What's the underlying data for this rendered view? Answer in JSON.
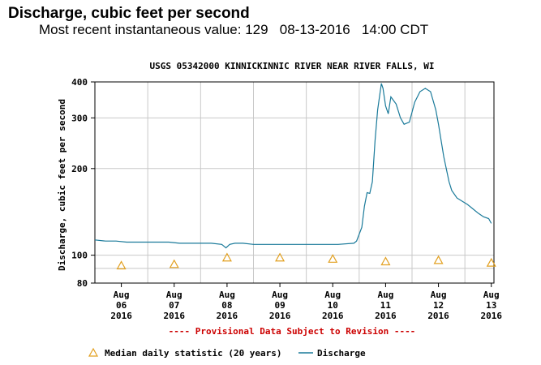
{
  "header": {
    "title": "Discharge, cubic feet per second",
    "recent_label": "Most recent instantaneous value:",
    "recent_value": "129",
    "recent_date": "08-13-2016",
    "recent_time": "14:00 CDT"
  },
  "chart_data": {
    "type": "line",
    "title": "USGS 05342000 KINNICKINNIC RIVER NEAR RIVER FALLS, WI",
    "ylabel": "Discharge, cubic feet per second",
    "xlabel": "",
    "y_scale": "log",
    "ylim": [
      80,
      400
    ],
    "xlim": [
      0,
      7.55
    ],
    "y_ticks": [
      {
        "value": 80,
        "label": "80"
      },
      {
        "value": 100,
        "label": "100"
      },
      {
        "value": 200,
        "label": "200"
      },
      {
        "value": 300,
        "label": "300"
      },
      {
        "value": 400,
        "label": "400"
      }
    ],
    "x_ticks": [
      {
        "value": 0.5,
        "month": "Aug",
        "day": "06",
        "year": "2016"
      },
      {
        "value": 1.5,
        "month": "Aug",
        "day": "07",
        "year": "2016"
      },
      {
        "value": 2.5,
        "month": "Aug",
        "day": "08",
        "year": "2016"
      },
      {
        "value": 3.5,
        "month": "Aug",
        "day": "09",
        "year": "2016"
      },
      {
        "value": 4.5,
        "month": "Aug",
        "day": "10",
        "year": "2016"
      },
      {
        "value": 5.5,
        "month": "Aug",
        "day": "11",
        "year": "2016"
      },
      {
        "value": 6.5,
        "month": "Aug",
        "day": "12",
        "year": "2016"
      },
      {
        "value": 7.5,
        "month": "Aug",
        "day": "13",
        "year": "2016"
      }
    ],
    "series": [
      {
        "name": "Discharge",
        "color": "#1a7a9a",
        "x": [
          0.0,
          0.2,
          0.4,
          0.6,
          0.8,
          1.0,
          1.2,
          1.4,
          1.6,
          1.8,
          2.0,
          2.2,
          2.4,
          2.48,
          2.55,
          2.65,
          2.8,
          3.0,
          3.2,
          3.4,
          3.6,
          3.8,
          4.0,
          4.2,
          4.4,
          4.6,
          4.9,
          4.95,
          5.05,
          5.1,
          5.15,
          5.2,
          5.25,
          5.3,
          5.35,
          5.42,
          5.45,
          5.5,
          5.55,
          5.6,
          5.7,
          5.78,
          5.85,
          5.95,
          6.05,
          6.15,
          6.25,
          6.35,
          6.45,
          6.5,
          6.6,
          6.7,
          6.75,
          6.85,
          6.95,
          7.05,
          7.15,
          7.25,
          7.35,
          7.45,
          7.5
        ],
        "values": [
          113,
          112,
          112,
          111,
          111,
          111,
          111,
          111,
          110,
          110,
          110,
          110,
          109,
          106,
          109,
          110,
          110,
          109,
          109,
          109,
          109,
          109,
          109,
          109,
          109,
          109,
          110,
          112,
          125,
          148,
          165,
          164,
          180,
          250,
          320,
          395,
          380,
          330,
          310,
          355,
          335,
          300,
          285,
          290,
          340,
          370,
          380,
          370,
          320,
          285,
          220,
          180,
          168,
          158,
          154,
          150,
          145,
          140,
          136,
          134,
          129
        ]
      },
      {
        "name": "Median daily statistic (20 years)",
        "color": "#e2a020",
        "x": [
          0.5,
          1.5,
          2.5,
          3.5,
          4.5,
          5.5,
          6.5,
          7.5
        ],
        "values": [
          92,
          93,
          98,
          98,
          97,
          95,
          96,
          94
        ]
      }
    ],
    "legend": [
      {
        "label": "Median daily statistic (20 years)",
        "symbol": "triangle"
      },
      {
        "label": "Discharge",
        "symbol": "line"
      }
    ],
    "annotation": "---- Provisional Data Subject to Revision ----",
    "colors": {
      "grid": "#c8c8c8",
      "axis": "#000000",
      "annotation": "#cc0000",
      "median": "#e2a020",
      "discharge": "#1a7a9a"
    }
  }
}
